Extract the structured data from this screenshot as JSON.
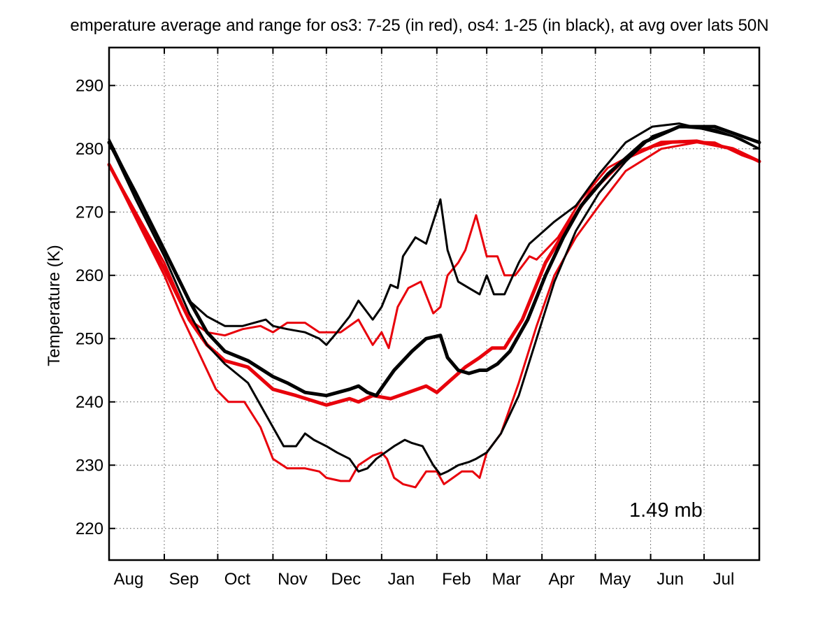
{
  "chart_data": {
    "type": "line",
    "title": "emperature average and range for os3: 7-25 (in red), os4: 1-25 (in black),  at avg over lats 50N",
    "xlabel": "",
    "ylabel": "Temperature (K)",
    "xlim": [
      0,
      365
    ],
    "ylim": [
      215,
      296
    ],
    "grid": true,
    "yticks": [
      220,
      230,
      240,
      250,
      260,
      270,
      280,
      290
    ],
    "xticks": [
      {
        "label": "Aug",
        "x": 0
      },
      {
        "label": "Sep",
        "x": 31
      },
      {
        "label": "Oct",
        "x": 61
      },
      {
        "label": "Nov",
        "x": 92
      },
      {
        "label": "Dec",
        "x": 122
      },
      {
        "label": "Jan",
        "x": 153
      },
      {
        "label": "Feb",
        "x": 184
      },
      {
        "label": "Mar",
        "x": 212
      },
      {
        "label": "Apr",
        "x": 243
      },
      {
        "label": "May",
        "x": 273
      },
      {
        "label": "Jun",
        "x": 304
      },
      {
        "label": "Jul",
        "x": 334
      }
    ],
    "annotation": "1.49 mb",
    "colors": {
      "os3": "#e8000b",
      "os4": "#000000"
    },
    "series": [
      {
        "group": "os3",
        "role": "max",
        "color": "#e8000b",
        "points": [
          [
            0,
            277.5
          ],
          [
            15,
            270
          ],
          [
            31,
            262
          ],
          [
            45,
            253
          ],
          [
            55,
            251
          ],
          [
            65,
            250.5
          ],
          [
            75,
            251.5
          ],
          [
            85,
            252
          ],
          [
            92,
            251
          ],
          [
            100,
            252.5
          ],
          [
            110,
            252.5
          ],
          [
            118,
            251
          ],
          [
            122,
            251
          ],
          [
            130,
            251
          ],
          [
            140,
            253
          ],
          [
            148,
            249
          ],
          [
            153,
            251
          ],
          [
            157,
            248.5
          ],
          [
            162,
            255
          ],
          [
            168,
            258
          ],
          [
            175,
            259
          ],
          [
            182,
            254
          ],
          [
            186,
            255
          ],
          [
            190,
            260
          ],
          [
            196,
            262
          ],
          [
            200,
            264
          ],
          [
            206,
            269.5
          ],
          [
            212,
            263
          ],
          [
            218,
            263
          ],
          [
            222,
            260
          ],
          [
            228,
            260
          ],
          [
            236,
            263
          ],
          [
            240,
            262.5
          ],
          [
            252,
            266
          ],
          [
            265,
            272
          ],
          [
            280,
            277
          ],
          [
            300,
            280
          ],
          [
            320,
            281.2
          ],
          [
            340,
            281
          ],
          [
            355,
            279
          ],
          [
            365,
            278
          ]
        ]
      },
      {
        "group": "os3",
        "role": "mean",
        "color": "#e8000b",
        "points": [
          [
            0,
            277.5
          ],
          [
            15,
            269.5
          ],
          [
            31,
            261
          ],
          [
            45,
            253
          ],
          [
            55,
            249
          ],
          [
            65,
            246.5
          ],
          [
            78,
            245.5
          ],
          [
            92,
            242
          ],
          [
            105,
            241
          ],
          [
            122,
            239.5
          ],
          [
            135,
            240.5
          ],
          [
            140,
            240
          ],
          [
            148,
            241
          ],
          [
            158,
            240.5
          ],
          [
            168,
            241.5
          ],
          [
            178,
            242.5
          ],
          [
            184,
            241.5
          ],
          [
            190,
            243
          ],
          [
            200,
            245.5
          ],
          [
            208,
            247
          ],
          [
            215,
            248.5
          ],
          [
            222,
            248.5
          ],
          [
            232,
            253
          ],
          [
            245,
            262
          ],
          [
            258,
            268
          ],
          [
            270,
            273
          ],
          [
            290,
            278.5
          ],
          [
            310,
            281
          ],
          [
            330,
            281.2
          ],
          [
            350,
            280
          ],
          [
            365,
            278
          ]
        ]
      },
      {
        "group": "os3",
        "role": "min",
        "color": "#e8000b",
        "points": [
          [
            0,
            277.5
          ],
          [
            15,
            269
          ],
          [
            31,
            260
          ],
          [
            40,
            254
          ],
          [
            50,
            248
          ],
          [
            60,
            242
          ],
          [
            67,
            240
          ],
          [
            76,
            240
          ],
          [
            85,
            236
          ],
          [
            92,
            231
          ],
          [
            100,
            229.5
          ],
          [
            110,
            229.5
          ],
          [
            118,
            229
          ],
          [
            122,
            228
          ],
          [
            130,
            227.5
          ],
          [
            135,
            227.5
          ],
          [
            140,
            230
          ],
          [
            148,
            231.5
          ],
          [
            153,
            232
          ],
          [
            156,
            231
          ],
          [
            160,
            228
          ],
          [
            165,
            227
          ],
          [
            172,
            226.5
          ],
          [
            178,
            229
          ],
          [
            184,
            229
          ],
          [
            188,
            227
          ],
          [
            193,
            228
          ],
          [
            198,
            229
          ],
          [
            204,
            229
          ],
          [
            208,
            228
          ],
          [
            212,
            232
          ],
          [
            220,
            235
          ],
          [
            230,
            243
          ],
          [
            240,
            252
          ],
          [
            250,
            260
          ],
          [
            262,
            266
          ],
          [
            275,
            271
          ],
          [
            290,
            276.5
          ],
          [
            310,
            280
          ],
          [
            330,
            281
          ],
          [
            350,
            280
          ],
          [
            365,
            278
          ]
        ]
      },
      {
        "group": "os4",
        "role": "max",
        "color": "#000000",
        "points": [
          [
            0,
            281.5
          ],
          [
            15,
            273
          ],
          [
            31,
            264
          ],
          [
            45,
            256
          ],
          [
            55,
            253.5
          ],
          [
            65,
            252
          ],
          [
            75,
            252
          ],
          [
            88,
            253
          ],
          [
            92,
            252
          ],
          [
            100,
            251.5
          ],
          [
            110,
            251
          ],
          [
            118,
            250
          ],
          [
            122,
            249
          ],
          [
            128,
            251
          ],
          [
            135,
            253.5
          ],
          [
            140,
            256
          ],
          [
            148,
            253
          ],
          [
            153,
            255
          ],
          [
            158,
            258.5
          ],
          [
            162,
            258
          ],
          [
            165,
            263
          ],
          [
            172,
            266
          ],
          [
            178,
            265
          ],
          [
            186,
            272
          ],
          [
            190,
            264
          ],
          [
            196,
            259
          ],
          [
            202,
            258
          ],
          [
            208,
            257
          ],
          [
            212,
            260
          ],
          [
            216,
            257
          ],
          [
            222,
            257
          ],
          [
            230,
            262
          ],
          [
            236,
            265
          ],
          [
            250,
            268.5
          ],
          [
            262,
            271
          ],
          [
            275,
            276
          ],
          [
            290,
            281
          ],
          [
            305,
            283.5
          ],
          [
            320,
            284
          ],
          [
            335,
            283
          ],
          [
            350,
            282
          ],
          [
            365,
            280
          ]
        ]
      },
      {
        "group": "os4",
        "role": "mean",
        "color": "#000000",
        "points": [
          [
            0,
            281
          ],
          [
            15,
            273
          ],
          [
            31,
            264
          ],
          [
            45,
            256
          ],
          [
            55,
            251
          ],
          [
            65,
            248
          ],
          [
            78,
            246.5
          ],
          [
            92,
            244
          ],
          [
            100,
            243
          ],
          [
            110,
            241.5
          ],
          [
            122,
            241
          ],
          [
            135,
            242
          ],
          [
            140,
            242.5
          ],
          [
            145,
            241.5
          ],
          [
            150,
            241
          ],
          [
            155,
            243
          ],
          [
            160,
            245
          ],
          [
            170,
            248
          ],
          [
            178,
            250
          ],
          [
            186,
            250.5
          ],
          [
            190,
            247
          ],
          [
            196,
            245
          ],
          [
            202,
            244.5
          ],
          [
            208,
            245
          ],
          [
            212,
            245
          ],
          [
            218,
            246
          ],
          [
            225,
            248
          ],
          [
            235,
            253
          ],
          [
            245,
            260
          ],
          [
            255,
            266
          ],
          [
            265,
            271
          ],
          [
            280,
            276
          ],
          [
            300,
            281
          ],
          [
            320,
            283.5
          ],
          [
            340,
            283.5
          ],
          [
            355,
            282
          ],
          [
            365,
            281
          ]
        ]
      },
      {
        "group": "os4",
        "role": "min",
        "color": "#000000",
        "points": [
          [
            0,
            281
          ],
          [
            15,
            272
          ],
          [
            31,
            263
          ],
          [
            45,
            254
          ],
          [
            55,
            249
          ],
          [
            65,
            246
          ],
          [
            78,
            243
          ],
          [
            92,
            236
          ],
          [
            98,
            233
          ],
          [
            105,
            233
          ],
          [
            110,
            235
          ],
          [
            115,
            234
          ],
          [
            122,
            233
          ],
          [
            128,
            232
          ],
          [
            135,
            231
          ],
          [
            140,
            229
          ],
          [
            145,
            229.5
          ],
          [
            150,
            231
          ],
          [
            155,
            232
          ],
          [
            160,
            233
          ],
          [
            166,
            234
          ],
          [
            170,
            233.5
          ],
          [
            176,
            233
          ],
          [
            182,
            230
          ],
          [
            186,
            228.5
          ],
          [
            190,
            229
          ],
          [
            196,
            230
          ],
          [
            202,
            230.5
          ],
          [
            206,
            231
          ],
          [
            212,
            232
          ],
          [
            220,
            235
          ],
          [
            230,
            241
          ],
          [
            240,
            250
          ],
          [
            250,
            259
          ],
          [
            262,
            267
          ],
          [
            275,
            273
          ],
          [
            290,
            278
          ],
          [
            305,
            282
          ],
          [
            320,
            283.5
          ],
          [
            340,
            283
          ],
          [
            355,
            281.5
          ],
          [
            365,
            280
          ]
        ]
      }
    ]
  }
}
